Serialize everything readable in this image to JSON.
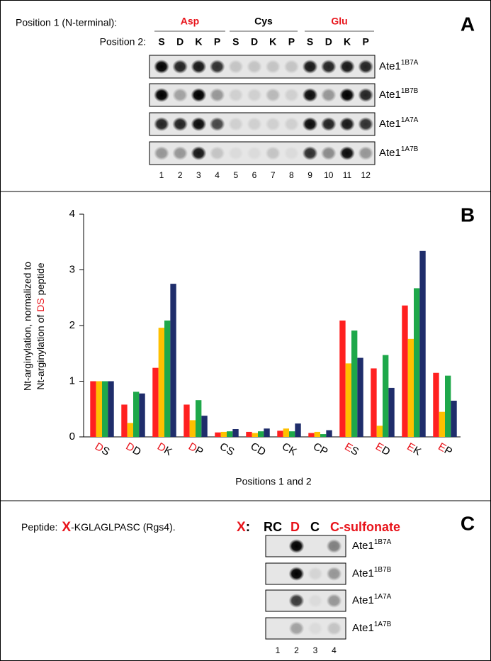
{
  "panel_a": {
    "label": "A",
    "position1_label": "Position 1 (N-terminal):",
    "position1_groups": [
      {
        "text": "Asp",
        "color": "#e8141b"
      },
      {
        "text": "Cys",
        "color": "#000000"
      },
      {
        "text": "Glu",
        "color": "#e8141b"
      }
    ],
    "position2_label": "Position 2:",
    "position2": [
      "S",
      "D",
      "K",
      "P",
      "S",
      "D",
      "K",
      "P",
      "S",
      "D",
      "K",
      "P"
    ],
    "rows": [
      {
        "name": "Ate1",
        "superscript": "1B7A"
      },
      {
        "name": "Ate1",
        "superscript": "1B7B"
      },
      {
        "name": "Ate1",
        "superscript": "1A7A"
      },
      {
        "name": "Ate1",
        "superscript": "1A7B"
      }
    ],
    "lane_numbers": [
      "1",
      "2",
      "3",
      "4",
      "5",
      "6",
      "7",
      "8",
      "9",
      "10",
      "11",
      "12"
    ]
  },
  "chart_data": {
    "type": "bar",
    "panel_label": "B",
    "ylabel": {
      "line1": "Nt-arginylation, normalized to",
      "line2": [
        "Nt-arginylation of",
        "DS",
        "peptide"
      ]
    },
    "ylabel_highlight_color": "#e8141b",
    "xlabel": "Positions 1 and 2",
    "categories": [
      {
        "position1": "D",
        "position2": "S"
      },
      {
        "position1": "D",
        "position2": "D"
      },
      {
        "position1": "D",
        "position2": "K"
      },
      {
        "position1": "D",
        "position2": "P"
      },
      {
        "position1": "C",
        "position2": "S"
      },
      {
        "position1": "C",
        "position2": "D"
      },
      {
        "position1": "C",
        "position2": "K"
      },
      {
        "position1": "C",
        "position2": "P"
      },
      {
        "position1": "E",
        "position2": "S"
      },
      {
        "position1": "E",
        "position2": "D"
      },
      {
        "position1": "E",
        "position2": "K"
      },
      {
        "position1": "E",
        "position2": "P"
      }
    ],
    "position1_colors": {
      "D": "#e8141b",
      "C": "#000000",
      "E": "#e8141b"
    },
    "series": [
      {
        "color": "#ff2020",
        "values": [
          1,
          0.58,
          1.24,
          0.58,
          0.08,
          0.09,
          0.11,
          0.07,
          2.09,
          1.23,
          2.36,
          1.15
        ]
      },
      {
        "color": "#ffc000",
        "values": [
          1,
          0.25,
          1.96,
          0.3,
          0.09,
          0.07,
          0.15,
          0.09,
          1.32,
          0.2,
          1.76,
          0.45
        ]
      },
      {
        "color": "#1ea84a",
        "values": [
          1,
          0.81,
          2.09,
          0.66,
          0.1,
          0.1,
          0.1,
          0.05,
          1.91,
          1.47,
          2.67,
          1.1
        ]
      },
      {
        "color": "#1f2d6b",
        "values": [
          1,
          0.78,
          2.75,
          0.38,
          0.14,
          0.15,
          0.24,
          0.12,
          1.42,
          0.88,
          3.34,
          0.65
        ]
      }
    ],
    "ylim": [
      0,
      4
    ],
    "yticks": [
      0,
      1,
      2,
      3,
      4
    ],
    "grid": false
  },
  "panel_c": {
    "label": "C",
    "peptide_label": "Peptide:",
    "peptide_x": "X",
    "peptide_rest": "-KGLAGLPASC (Rgs4).",
    "selector": {
      "letter": "X",
      "colon": ":"
    },
    "highlight_color": "#e8141b",
    "columns": [
      {
        "text": "RC",
        "color": "#000000"
      },
      {
        "text": "D",
        "color": "#e8141b"
      },
      {
        "text": "C",
        "color": "#000000"
      },
      {
        "text": "C-sulfonate",
        "color": "#e8141b"
      }
    ],
    "rows": [
      {
        "name": "Ate1",
        "superscript": "1B7A"
      },
      {
        "name": "Ate1",
        "superscript": "1B7B"
      },
      {
        "name": "Ate1",
        "superscript": "1A7A"
      },
      {
        "name": "Ate1",
        "superscript": "1A7B"
      }
    ],
    "lane_numbers": [
      "1",
      "2",
      "3",
      "4"
    ]
  }
}
